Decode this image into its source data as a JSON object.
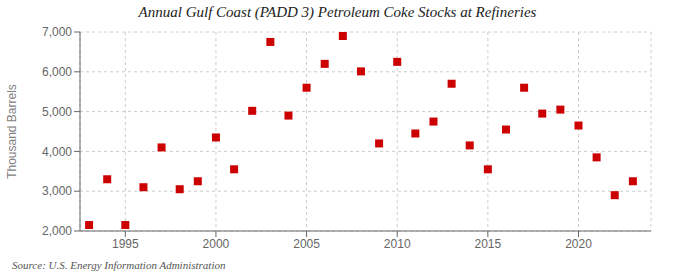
{
  "chart_data": {
    "type": "scatter",
    "title": "Annual Gulf Coast (PADD 3) Petroleum Coke Stocks at Refineries",
    "y_label": "Thousand Barrels",
    "annotations": [
      "Source: U.S. Energy Information Administration"
    ],
    "x": [
      1993,
      1994,
      1995,
      1996,
      1997,
      1998,
      1999,
      2000,
      2001,
      2002,
      2003,
      2004,
      2005,
      2006,
      2007,
      2008,
      2009,
      2010,
      2011,
      2012,
      2013,
      2014,
      2015,
      2016,
      2017,
      2018,
      2019,
      2020,
      2021,
      2022,
      2023
    ],
    "values": [
      2150,
      3300,
      2150,
      3100,
      4100,
      3050,
      3250,
      4350,
      3550,
      5020,
      6750,
      4900,
      5600,
      6200,
      6900,
      6010,
      4200,
      6250,
      4450,
      4750,
      5700,
      4150,
      3550,
      4550,
      5600,
      4950,
      5050,
      4650,
      3850,
      2900,
      3250
    ],
    "color": "#cc0000",
    "marker": "square",
    "xlim": [
      1992.5,
      2024
    ],
    "xticks": [
      1995,
      2000,
      2005,
      2010,
      2015,
      2020
    ],
    "ylim": [
      2000,
      7000
    ],
    "yticks": [
      {
        "value": 2000,
        "label": "2,000"
      },
      {
        "value": 3000,
        "label": "3,000"
      },
      {
        "value": 4000,
        "label": "4,000"
      },
      {
        "value": 5000,
        "label": "5,000"
      },
      {
        "value": 6000,
        "label": "6,000"
      },
      {
        "value": 7000,
        "label": "7,000"
      }
    ],
    "grid": true
  }
}
